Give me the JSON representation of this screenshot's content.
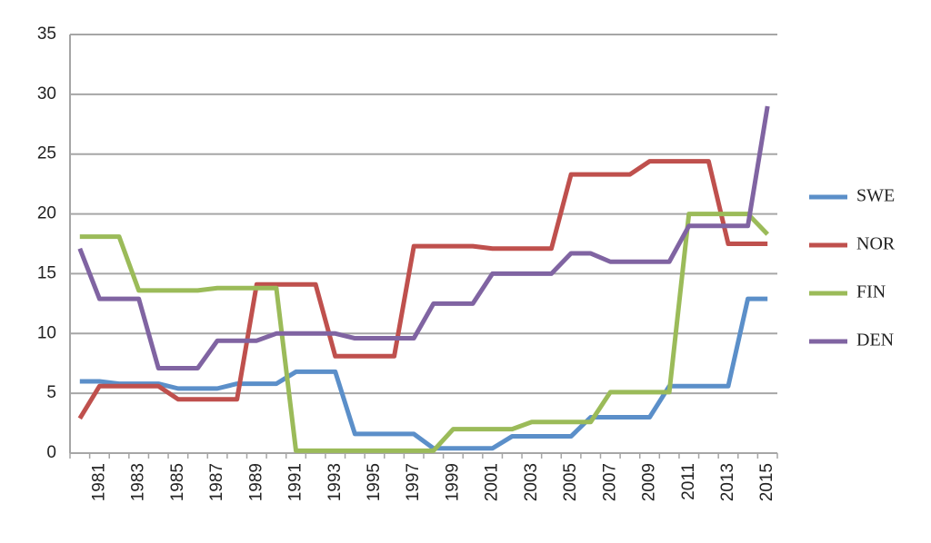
{
  "chart_data": {
    "type": "line",
    "categories": [
      null,
      "1981",
      null,
      "1983",
      null,
      "1985",
      null,
      "1987",
      null,
      "1989",
      null,
      "1991",
      null,
      "1993",
      null,
      "1995",
      null,
      "1997",
      null,
      "1999",
      null,
      "2001",
      null,
      "2003",
      null,
      "2005",
      null,
      "2007",
      null,
      "2009",
      null,
      "2011",
      null,
      "2013",
      null,
      "2015"
    ],
    "series": [
      {
        "name": "SWE",
        "color": "#5b8fc9",
        "values": [
          6,
          6,
          5.8,
          5.8,
          5.8,
          5.4,
          5.4,
          5.4,
          5.8,
          5.8,
          5.8,
          6.8,
          6.8,
          6.8,
          1.6,
          1.6,
          1.6,
          1.6,
          0.4,
          0.4,
          0.4,
          0.4,
          1.4,
          1.4,
          1.4,
          1.4,
          3,
          3,
          3,
          3,
          5.6,
          5.6,
          5.6,
          5.6,
          12.9,
          12.9
        ]
      },
      {
        "name": "NOR",
        "color": "#bf504d",
        "values": [
          2.9,
          5.6,
          5.6,
          5.6,
          5.6,
          4.5,
          4.5,
          4.5,
          4.5,
          14.1,
          14.1,
          14.1,
          14.1,
          8.1,
          8.1,
          8.1,
          8.1,
          17.3,
          17.3,
          17.3,
          17.3,
          17.1,
          17.1,
          17.1,
          17.1,
          23.3,
          23.3,
          23.3,
          23.3,
          24.4,
          24.4,
          24.4,
          24.4,
          17.5,
          17.5,
          17.5
        ]
      },
      {
        "name": "FIN",
        "color": "#9bbb59",
        "values": [
          18.1,
          18.1,
          18.1,
          13.6,
          13.6,
          13.6,
          13.6,
          13.8,
          13.8,
          13.8,
          13.8,
          0.2,
          0.2,
          0.2,
          0.2,
          0.2,
          0.2,
          0.2,
          0.2,
          2,
          2,
          2,
          2,
          2.6,
          2.6,
          2.6,
          2.6,
          5.1,
          5.1,
          5.1,
          5.1,
          20,
          20,
          20,
          20,
          18.3
        ]
      },
      {
        "name": "DEN",
        "color": "#8064a2",
        "values": [
          17.1,
          12.9,
          12.9,
          12.9,
          7.1,
          7.1,
          7.1,
          9.4,
          9.4,
          9.4,
          10,
          10,
          10,
          10,
          9.6,
          9.6,
          9.6,
          9.6,
          12.5,
          12.5,
          12.5,
          15,
          15,
          15,
          15,
          16.7,
          16.7,
          16,
          16,
          16,
          16,
          19,
          19,
          19,
          19,
          29
        ]
      }
    ],
    "ylim": [
      0,
      35
    ],
    "yticks": [
      0,
      5,
      10,
      15,
      20,
      25,
      30,
      35
    ],
    "grid": true,
    "legend": "right"
  }
}
